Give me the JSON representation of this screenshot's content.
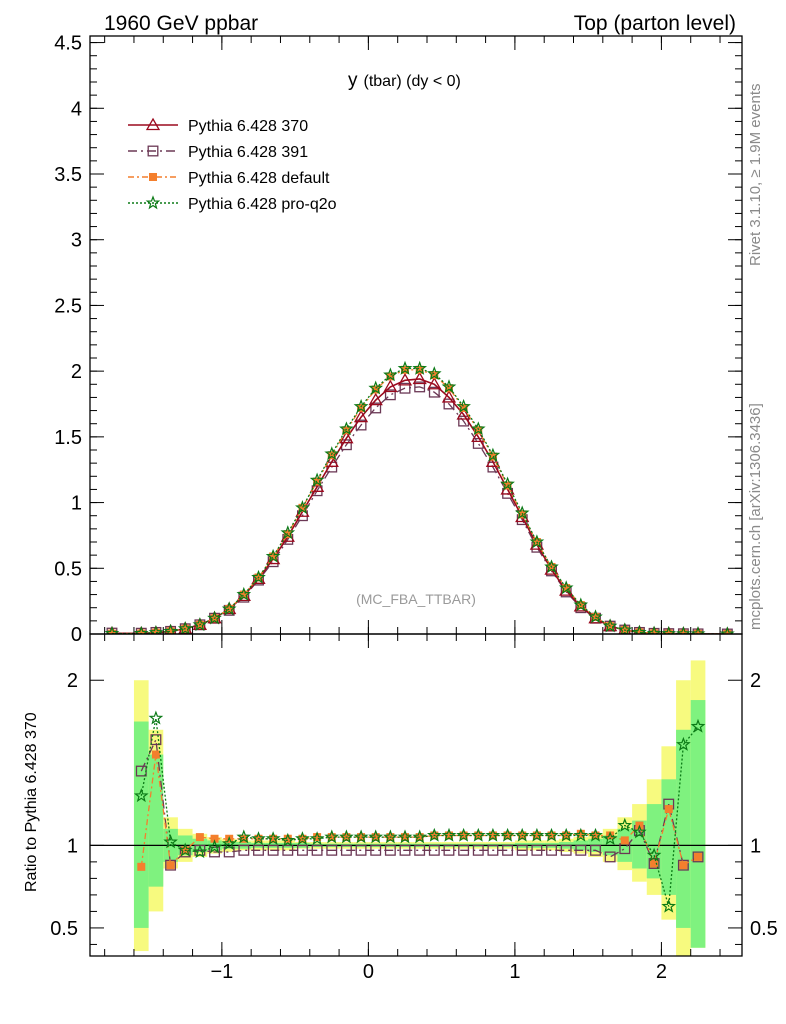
{
  "header": {
    "left": "1960 GeV ppbar",
    "right": "Top (parton level)"
  },
  "side_labels": {
    "rivet": "Rivet 3.1.10, ≥ 1.9M events",
    "mcplots": "mcplots.cern.ch [arXiv:1306.3436]"
  },
  "plot_title_main": "y",
  "plot_title_sub": "(tbar) (dy < 0)",
  "analysis_label": "(MC_FBA_TTBAR)",
  "ratio_ylabel": "Ratio to Pythia 6.428 370",
  "colors": {
    "p370": "#9b0a1e",
    "p391": "#6b3855",
    "default": "#f47f2d",
    "proq2o": "#0b7a16",
    "band_yellow": "#f7fa7f",
    "band_green": "#7ff27f"
  },
  "chart_data": [
    {
      "type": "line",
      "xlim": [
        -1.9,
        2.55
      ],
      "ylim": [
        0,
        4.55
      ],
      "yticks": [
        "0",
        "0.5",
        "1",
        "1.5",
        "2",
        "2.5",
        "3",
        "3.5",
        "4",
        "4.5"
      ],
      "legend_position": "top-left",
      "x": [
        -1.75,
        -1.55,
        -1.45,
        -1.35,
        -1.25,
        -1.15,
        -1.05,
        -0.95,
        -0.85,
        -0.75,
        -0.65,
        -0.55,
        -0.45,
        -0.35,
        -0.25,
        -0.15,
        -0.05,
        0.05,
        0.15,
        0.25,
        0.35,
        0.45,
        0.55,
        0.65,
        0.75,
        0.85,
        0.95,
        1.05,
        1.15,
        1.25,
        1.35,
        1.45,
        1.55,
        1.65,
        1.75,
        1.85,
        1.95,
        2.05,
        2.15,
        2.25,
        2.45
      ],
      "series": [
        {
          "name": "Pythia 6.428 370",
          "values": [
            0.005,
            0.005,
            0.01,
            0.02,
            0.04,
            0.07,
            0.12,
            0.19,
            0.29,
            0.42,
            0.57,
            0.74,
            0.93,
            1.12,
            1.31,
            1.49,
            1.65,
            1.78,
            1.88,
            1.93,
            1.94,
            1.9,
            1.8,
            1.67,
            1.5,
            1.31,
            1.1,
            0.89,
            0.68,
            0.49,
            0.33,
            0.21,
            0.12,
            0.06,
            0.03,
            0.012,
            0.005,
            0.003,
            0.002,
            0.001,
            0.0
          ]
        },
        {
          "name": "Pythia 6.428 391",
          "values": [
            0.007,
            0.006,
            0.012,
            0.02,
            0.04,
            0.07,
            0.12,
            0.18,
            0.28,
            0.41,
            0.55,
            0.72,
            0.9,
            1.09,
            1.27,
            1.44,
            1.59,
            1.72,
            1.82,
            1.87,
            1.88,
            1.84,
            1.75,
            1.62,
            1.45,
            1.27,
            1.07,
            0.87,
            0.66,
            0.48,
            0.32,
            0.2,
            0.12,
            0.06,
            0.03,
            0.012,
            0.005,
            0.003,
            0.002,
            0.001,
            0.0
          ]
        },
        {
          "name": "Pythia 6.428 default",
          "values": [
            0.003,
            0.004,
            0.01,
            0.02,
            0.04,
            0.07,
            0.12,
            0.19,
            0.3,
            0.43,
            0.59,
            0.76,
            0.96,
            1.16,
            1.36,
            1.55,
            1.72,
            1.86,
            1.96,
            2.01,
            2.01,
            1.97,
            1.87,
            1.72,
            1.55,
            1.35,
            1.13,
            0.91,
            0.7,
            0.51,
            0.35,
            0.22,
            0.13,
            0.06,
            0.03,
            0.012,
            0.005,
            0.003,
            0.002,
            0.001,
            0.0
          ]
        },
        {
          "name": "Pythia 6.428 pro-q2o",
          "values": [
            0.004,
            0.004,
            0.01,
            0.02,
            0.04,
            0.07,
            0.12,
            0.19,
            0.3,
            0.43,
            0.59,
            0.77,
            0.96,
            1.17,
            1.37,
            1.56,
            1.73,
            1.87,
            1.97,
            2.02,
            2.02,
            1.98,
            1.88,
            1.73,
            1.56,
            1.36,
            1.14,
            0.92,
            0.7,
            0.51,
            0.35,
            0.22,
            0.13,
            0.06,
            0.03,
            0.012,
            0.005,
            0.003,
            0.002,
            0.001,
            0.0
          ]
        }
      ]
    },
    {
      "type": "line",
      "xlim": [
        -1.9,
        2.55
      ],
      "ylim": [
        0.33,
        2.28
      ],
      "reference_line": 1,
      "yticks": [
        "0.5",
        "1",
        "2"
      ],
      "xticks": [
        "−1",
        "0",
        "1",
        "2"
      ],
      "x": [
        -1.55,
        -1.45,
        -1.35,
        -1.25,
        -1.15,
        -1.05,
        -0.95,
        -0.85,
        -0.75,
        -0.65,
        -0.55,
        -0.45,
        -0.35,
        -0.25,
        -0.15,
        -0.05,
        0.05,
        0.15,
        0.25,
        0.35,
        0.45,
        0.55,
        0.65,
        0.75,
        0.85,
        0.95,
        1.05,
        1.15,
        1.25,
        1.35,
        1.45,
        1.55,
        1.65,
        1.75,
        1.85,
        1.95,
        2.05,
        2.15,
        2.25
      ],
      "band_yellow": [
        [
          0.36,
          2.0
        ],
        [
          0.6,
          1.7
        ],
        [
          0.86,
          1.17
        ],
        [
          0.9,
          1.1
        ],
        [
          0.93,
          1.07
        ],
        [
          0.95,
          1.05
        ],
        [
          0.96,
          1.04
        ],
        [
          0.97,
          1.03
        ],
        [
          0.97,
          1.03
        ],
        [
          0.97,
          1.03
        ],
        [
          0.97,
          1.03
        ],
        [
          0.98,
          1.02
        ],
        [
          0.98,
          1.02
        ],
        [
          0.98,
          1.02
        ],
        [
          0.98,
          1.02
        ],
        [
          0.98,
          1.02
        ],
        [
          0.98,
          1.02
        ],
        [
          0.98,
          1.02
        ],
        [
          0.98,
          1.02
        ],
        [
          0.98,
          1.02
        ],
        [
          0.98,
          1.02
        ],
        [
          0.98,
          1.02
        ],
        [
          0.98,
          1.02
        ],
        [
          0.98,
          1.02
        ],
        [
          0.98,
          1.02
        ],
        [
          0.98,
          1.02
        ],
        [
          0.97,
          1.03
        ],
        [
          0.97,
          1.03
        ],
        [
          0.97,
          1.03
        ],
        [
          0.96,
          1.04
        ],
        [
          0.95,
          1.05
        ],
        [
          0.93,
          1.07
        ],
        [
          0.9,
          1.1
        ],
        [
          0.85,
          1.17
        ],
        [
          0.78,
          1.25
        ],
        [
          0.7,
          1.4
        ],
        [
          0.55,
          1.6
        ],
        [
          0.33,
          2.0
        ],
        [
          0.38,
          2.12
        ]
      ],
      "band_green": [
        [
          0.5,
          1.75
        ],
        [
          0.75,
          1.55
        ],
        [
          0.9,
          1.1
        ],
        [
          0.94,
          1.06
        ],
        [
          0.96,
          1.04
        ],
        [
          0.97,
          1.03
        ],
        [
          0.98,
          1.02
        ],
        [
          0.98,
          1.02
        ],
        [
          0.985,
          1.015
        ],
        [
          0.985,
          1.015
        ],
        [
          0.985,
          1.015
        ],
        [
          0.985,
          1.015
        ],
        [
          0.99,
          1.01
        ],
        [
          0.99,
          1.01
        ],
        [
          0.99,
          1.01
        ],
        [
          0.99,
          1.01
        ],
        [
          0.99,
          1.01
        ],
        [
          0.99,
          1.01
        ],
        [
          0.99,
          1.01
        ],
        [
          0.99,
          1.01
        ],
        [
          0.99,
          1.01
        ],
        [
          0.99,
          1.01
        ],
        [
          0.99,
          1.01
        ],
        [
          0.99,
          1.01
        ],
        [
          0.99,
          1.01
        ],
        [
          0.99,
          1.01
        ],
        [
          0.985,
          1.015
        ],
        [
          0.985,
          1.015
        ],
        [
          0.985,
          1.015
        ],
        [
          0.98,
          1.02
        ],
        [
          0.97,
          1.03
        ],
        [
          0.96,
          1.04
        ],
        [
          0.94,
          1.06
        ],
        [
          0.9,
          1.1
        ],
        [
          0.86,
          1.15
        ],
        [
          0.8,
          1.25
        ],
        [
          0.7,
          1.4
        ],
        [
          0.5,
          1.7
        ],
        [
          0.38,
          1.88
        ]
      ],
      "series": [
        {
          "name": "Pythia 6.428 391",
          "values": [
            1.45,
            1.64,
            0.88,
            0.96,
            0.97,
            0.96,
            0.96,
            0.97,
            0.97,
            0.97,
            0.97,
            0.97,
            0.97,
            0.97,
            0.97,
            0.97,
            0.97,
            0.97,
            0.97,
            0.97,
            0.97,
            0.97,
            0.97,
            0.97,
            0.97,
            0.97,
            0.97,
            0.97,
            0.97,
            0.97,
            0.97,
            0.97,
            0.93,
            0.98,
            1.09,
            0.89,
            1.25,
            0.88,
            0.93
          ]
        },
        {
          "name": "Pythia 6.428 default",
          "values": [
            0.87,
            1.55,
            0.88,
            0.97,
            1.05,
            1.04,
            1.04,
            1.04,
            1.04,
            1.04,
            1.04,
            1.04,
            1.05,
            1.05,
            1.05,
            1.05,
            1.05,
            1.05,
            1.05,
            1.05,
            1.06,
            1.06,
            1.06,
            1.06,
            1.06,
            1.06,
            1.06,
            1.06,
            1.06,
            1.06,
            1.07,
            1.06,
            1.06,
            1.03,
            1.12,
            0.89,
            1.22,
            0.88,
            0.93
          ]
        },
        {
          "name": "Pythia 6.428 pro-q2o",
          "values": [
            1.3,
            1.77,
            1.02,
            0.97,
            0.96,
            0.99,
            1.01,
            1.05,
            1.04,
            1.04,
            1.03,
            1.04,
            1.04,
            1.05,
            1.05,
            1.05,
            1.05,
            1.05,
            1.05,
            1.05,
            1.06,
            1.06,
            1.06,
            1.06,
            1.06,
            1.06,
            1.06,
            1.06,
            1.06,
            1.06,
            1.06,
            1.06,
            1.04,
            1.12,
            1.08,
            0.94,
            0.63,
            1.61,
            1.72
          ]
        }
      ]
    }
  ]
}
